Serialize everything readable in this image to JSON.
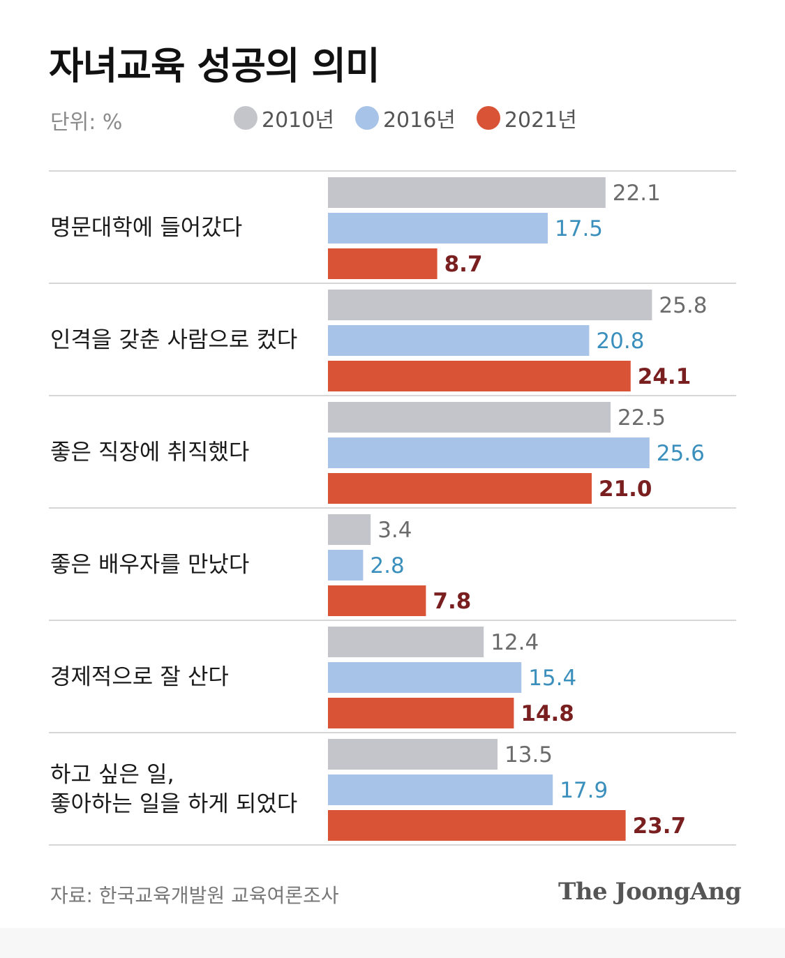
{
  "title": "자녀교육 성공의 의미",
  "unit": "단위: %",
  "legend": [
    {
      "label": "2010년",
      "color": "#c3c5cb"
    },
    {
      "label": "2016년",
      "color": "#a7c3e7"
    },
    {
      "label": "2021년",
      "color": "#d95436"
    }
  ],
  "chart_data": {
    "type": "bar",
    "orientation": "horizontal",
    "categories": [
      [
        "명문대학에 들어갔다"
      ],
      [
        "인격을 갖춘 사람으로 컸다"
      ],
      [
        "좋은 직장에 취직했다"
      ],
      [
        "좋은 배우자를 만났다"
      ],
      [
        "경제적으로 잘 산다"
      ],
      [
        "하고 싶은 일,",
        "좋아하는 일을 하게 되었다"
      ]
    ],
    "series": [
      {
        "name": "2010년",
        "color": "#c3c5cb",
        "label_color": "#6b6b6b",
        "values": [
          22.1,
          25.8,
          22.5,
          3.4,
          12.4,
          13.5
        ]
      },
      {
        "name": "2016년",
        "color": "#a7c3e7",
        "label_color": "#3b8fbd",
        "values": [
          17.5,
          20.8,
          25.6,
          2.8,
          15.4,
          17.9
        ]
      },
      {
        "name": "2021년",
        "color": "#d95436",
        "label_color": "#7a1f1f",
        "values": [
          8.7,
          24.1,
          21.0,
          7.8,
          14.8,
          23.7
        ]
      }
    ],
    "value_labels": [
      [
        "22.1",
        "17.5",
        "8.7"
      ],
      [
        "25.8",
        "20.8",
        "24.1"
      ],
      [
        "22.5",
        "25.6",
        "21.0"
      ],
      [
        "3.4",
        "2.8",
        "7.8"
      ],
      [
        "12.4",
        "15.4",
        "14.8"
      ],
      [
        "13.5",
        "17.9",
        "23.7"
      ]
    ],
    "xlim": [
      0,
      30
    ],
    "grid": "horizontal separators",
    "legend_position": "top"
  },
  "source": "자료: 한국교육개발원 교육여론조사",
  "brand": "The JoongAng"
}
